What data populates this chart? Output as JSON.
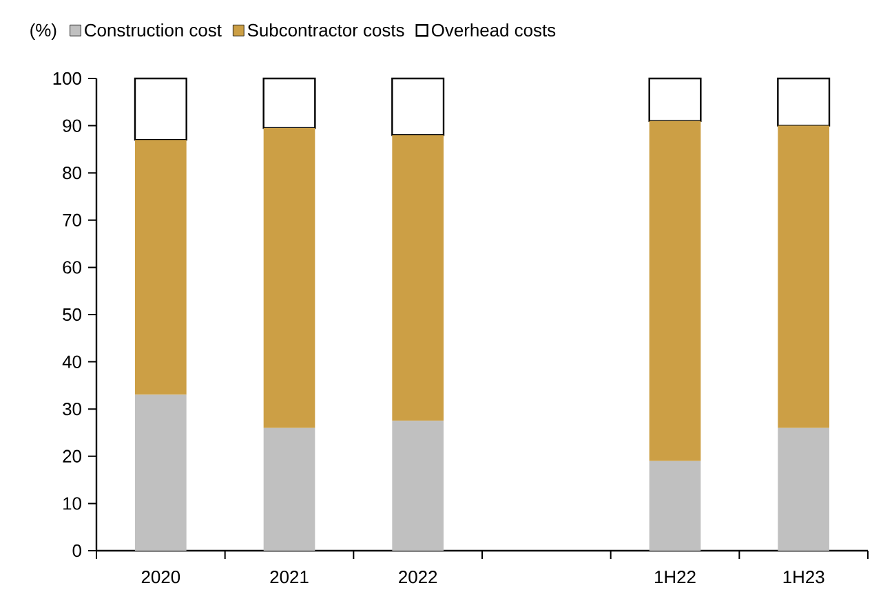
{
  "chart_data": {
    "type": "bar",
    "stacked": true,
    "ylabel": "(%)",
    "categories": [
      "2020",
      "2021",
      "2022",
      null,
      "1H22",
      "1H23"
    ],
    "series": [
      {
        "name": "Construction cost",
        "color": "#c0c0c0",
        "values": [
          33,
          26,
          27.5,
          null,
          19,
          26
        ]
      },
      {
        "name": "Subcontractor costs",
        "color": "#cc9f45",
        "values": [
          54,
          63.5,
          60.5,
          null,
          72,
          64
        ]
      },
      {
        "name": "Overhead costs",
        "color": "#ffffff",
        "values": [
          13,
          10.5,
          12,
          null,
          9,
          10
        ]
      }
    ],
    "ylim": [
      0,
      100
    ],
    "yticks": [
      0,
      10,
      20,
      30,
      40,
      50,
      60,
      70,
      80,
      90,
      100
    ],
    "legend": "top"
  }
}
